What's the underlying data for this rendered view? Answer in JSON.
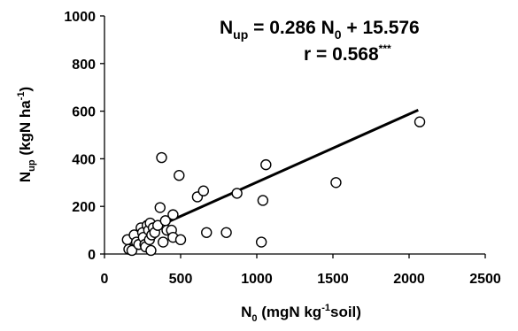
{
  "chart_data": {
    "type": "scatter",
    "title": "",
    "equation": {
      "line1": {
        "lhs_main": "N",
        "lhs_sub": "up",
        "mid": " = 0.286 N",
        "mid_sub": "0",
        "rhs": " + 15.576"
      },
      "line2": {
        "text": "r = 0.568",
        "sup": "***"
      }
    },
    "ylabel": {
      "main": "N",
      "sub": "up",
      "rest1": " (kgN ha",
      "sup": "-1",
      "rest2": ")"
    },
    "xlabel": {
      "main": "N",
      "sub": "0",
      "rest1": " (mgN kg",
      "sup": "-1",
      "rest2": "soil)"
    },
    "xlim": [
      0,
      2500
    ],
    "ylim": [
      0,
      1000
    ],
    "xticks": [
      "0",
      "500",
      "1000",
      "1500",
      "2000",
      "2500"
    ],
    "yticks": [
      "0",
      "200",
      "400",
      "600",
      "800",
      "1000"
    ],
    "grid": false,
    "trendline": {
      "slope": 0.286,
      "intercept": 15.576,
      "x_range": [
        150,
        2060
      ]
    },
    "points": [
      {
        "x": 150,
        "y": 60
      },
      {
        "x": 160,
        "y": 20
      },
      {
        "x": 180,
        "y": 15
      },
      {
        "x": 195,
        "y": 80
      },
      {
        "x": 210,
        "y": 50
      },
      {
        "x": 225,
        "y": 40
      },
      {
        "x": 240,
        "y": 110
      },
      {
        "x": 250,
        "y": 90
      },
      {
        "x": 255,
        "y": 70
      },
      {
        "x": 265,
        "y": 40
      },
      {
        "x": 270,
        "y": 30
      },
      {
        "x": 280,
        "y": 120
      },
      {
        "x": 290,
        "y": 100
      },
      {
        "x": 295,
        "y": 60
      },
      {
        "x": 300,
        "y": 130
      },
      {
        "x": 305,
        "y": 15
      },
      {
        "x": 310,
        "y": 80
      },
      {
        "x": 320,
        "y": 110
      },
      {
        "x": 330,
        "y": 90
      },
      {
        "x": 350,
        "y": 120
      },
      {
        "x": 365,
        "y": 195
      },
      {
        "x": 375,
        "y": 405
      },
      {
        "x": 385,
        "y": 50
      },
      {
        "x": 400,
        "y": 140
      },
      {
        "x": 410,
        "y": 100
      },
      {
        "x": 440,
        "y": 100
      },
      {
        "x": 450,
        "y": 165
      },
      {
        "x": 450,
        "y": 70
      },
      {
        "x": 490,
        "y": 330
      },
      {
        "x": 500,
        "y": 60
      },
      {
        "x": 610,
        "y": 240
      },
      {
        "x": 650,
        "y": 265
      },
      {
        "x": 670,
        "y": 90
      },
      {
        "x": 800,
        "y": 90
      },
      {
        "x": 870,
        "y": 255
      },
      {
        "x": 1030,
        "y": 50
      },
      {
        "x": 1040,
        "y": 225
      },
      {
        "x": 1060,
        "y": 375
      },
      {
        "x": 1520,
        "y": 300
      },
      {
        "x": 2070,
        "y": 555
      }
    ]
  }
}
